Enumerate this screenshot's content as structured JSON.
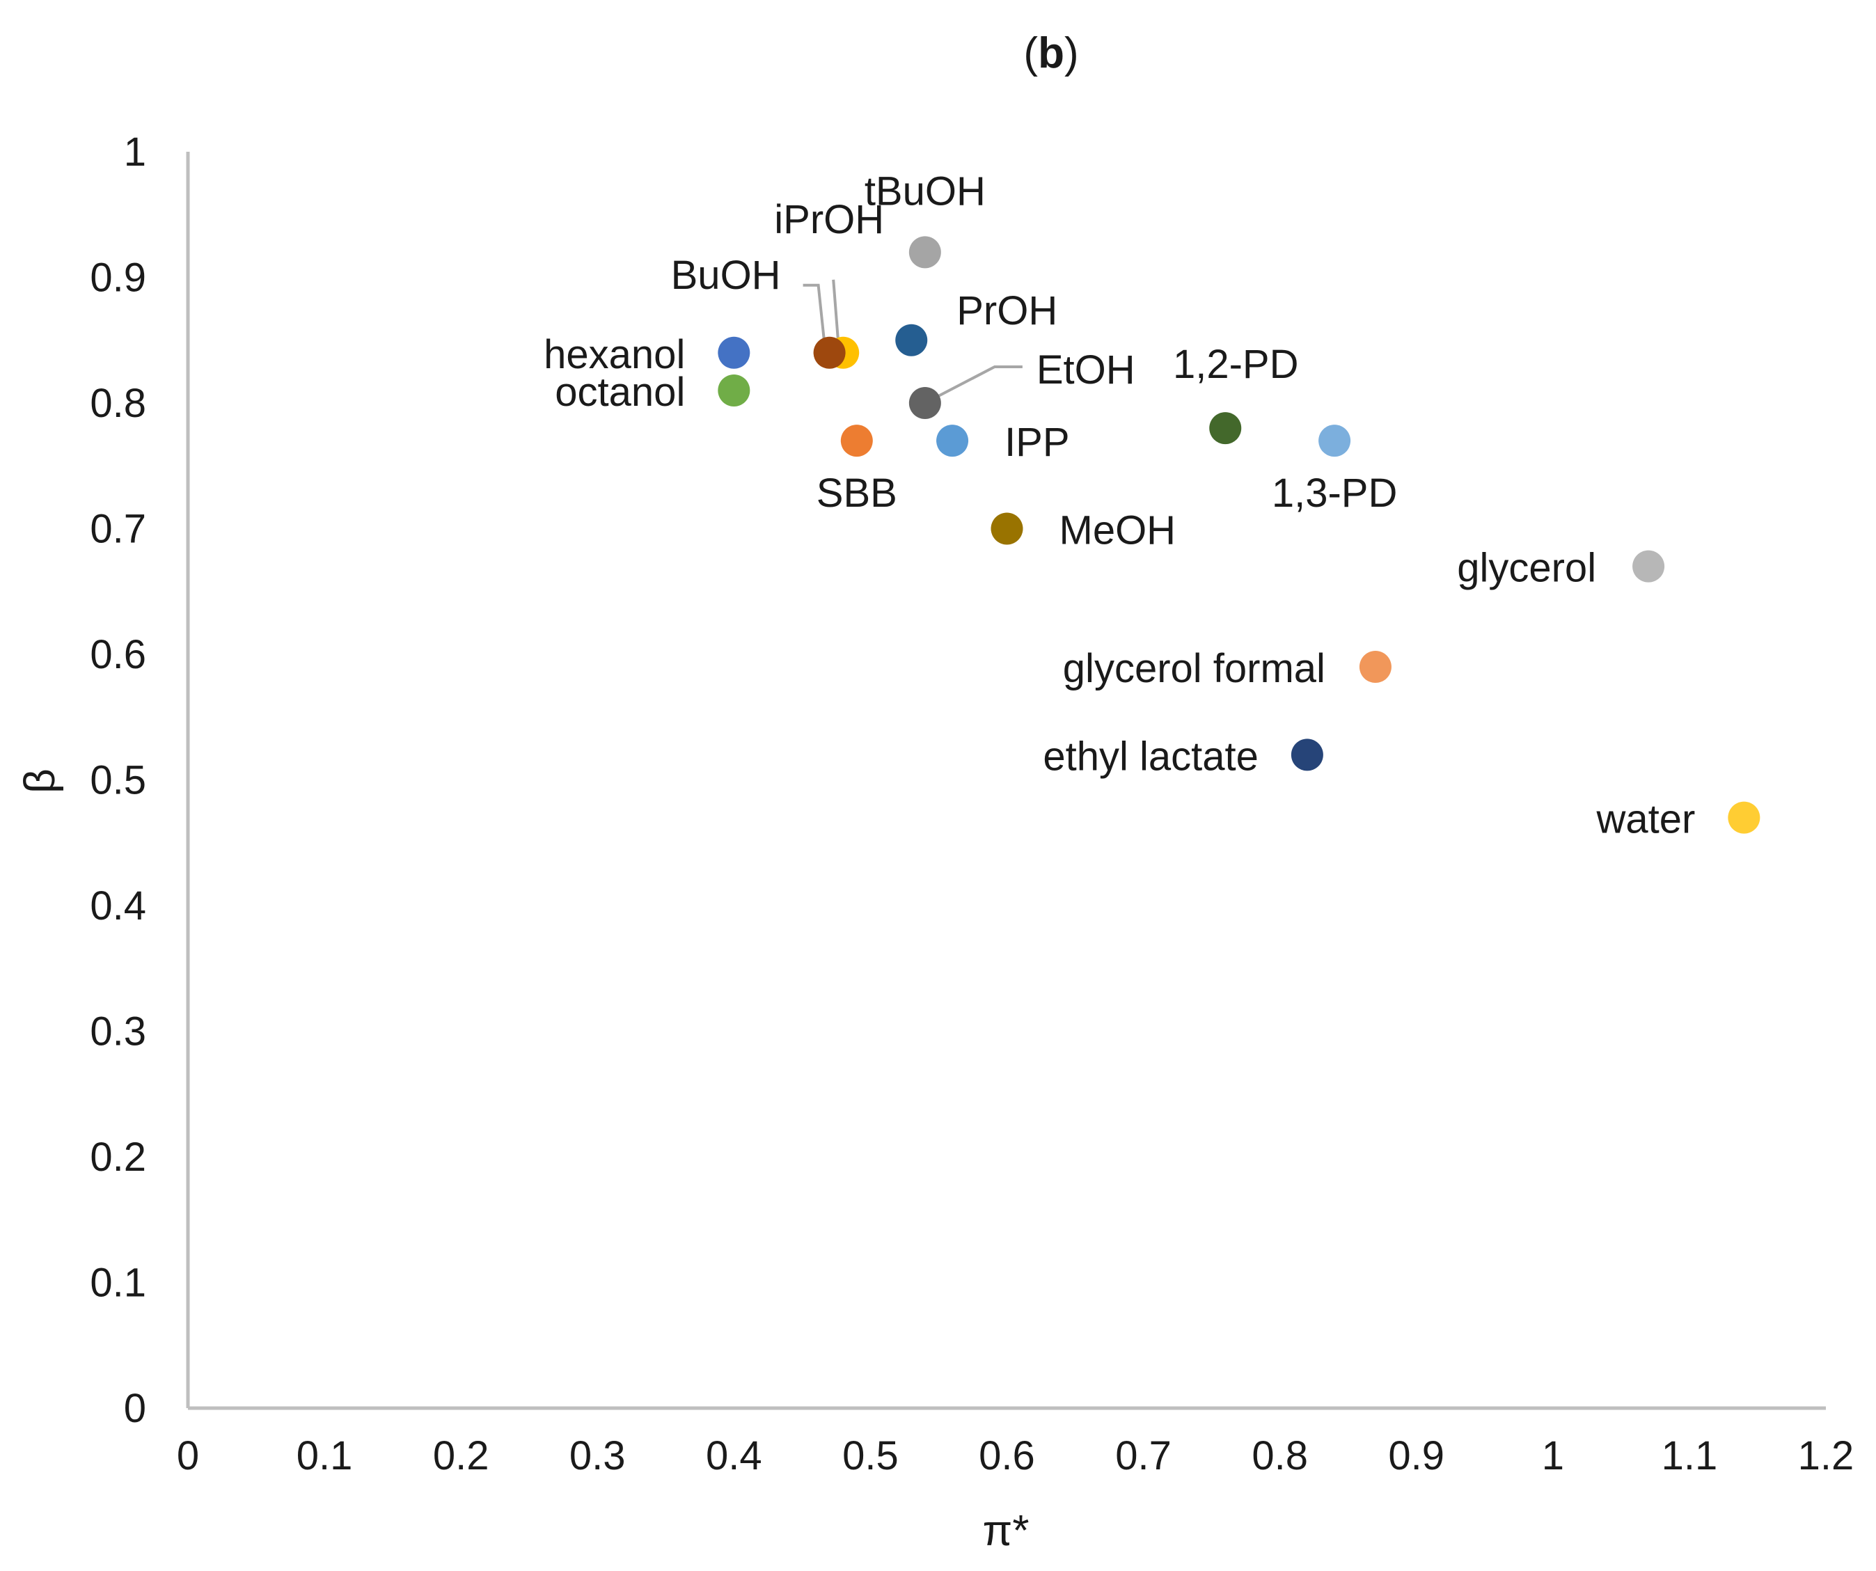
{
  "chart_data": {
    "type": "scatter",
    "title_prefix": "(",
    "title_bold": "b",
    "title_suffix": ")",
    "xlabel": "π*",
    "ylabel": "β",
    "xlim": [
      0,
      1.2
    ],
    "ylim": [
      0,
      1
    ],
    "xticks": [
      "0",
      "0.1",
      "0.2",
      "0.3",
      "0.4",
      "0.5",
      "0.6",
      "0.7",
      "0.8",
      "0.9",
      "1",
      "1.1",
      "1.2"
    ],
    "yticks": [
      "0",
      "0.1",
      "0.2",
      "0.3",
      "0.4",
      "0.5",
      "0.6",
      "0.7",
      "0.8",
      "0.9",
      "1"
    ],
    "grid": false,
    "points": [
      {
        "name": "tBuOH",
        "x": 0.54,
        "y": 0.92,
        "color": "#a5a5a5"
      },
      {
        "name": "hexanol",
        "x": 0.4,
        "y": 0.84,
        "color": "#4472c4"
      },
      {
        "name": "iPrOH",
        "x": 0.48,
        "y": 0.84,
        "color": "#ffc000"
      },
      {
        "name": "BuOH",
        "x": 0.47,
        "y": 0.84,
        "color": "#9e480e"
      },
      {
        "name": "PrOH",
        "x": 0.53,
        "y": 0.85,
        "color": "#255e91"
      },
      {
        "name": "octanol",
        "x": 0.4,
        "y": 0.81,
        "color": "#70ad47"
      },
      {
        "name": "EtOH",
        "x": 0.54,
        "y": 0.8,
        "color": "#636363"
      },
      {
        "name": "SBB",
        "x": 0.49,
        "y": 0.77,
        "color": "#ed7d31"
      },
      {
        "name": "IPP",
        "x": 0.56,
        "y": 0.77,
        "color": "#5b9bd5"
      },
      {
        "name": "1,2-PD",
        "x": 0.76,
        "y": 0.78,
        "color": "#43682b"
      },
      {
        "name": "1,3-PD",
        "x": 0.84,
        "y": 0.77,
        "color": "#7cafdd"
      },
      {
        "name": "MeOH",
        "x": 0.6,
        "y": 0.7,
        "color": "#997300"
      },
      {
        "name": "glycerol",
        "x": 1.07,
        "y": 0.67,
        "color": "#b7b7b7"
      },
      {
        "name": "glycerol formal",
        "x": 0.87,
        "y": 0.59,
        "color": "#f1975a"
      },
      {
        "name": "ethyl lactate",
        "x": 0.82,
        "y": 0.52,
        "color": "#264478"
      },
      {
        "name": "water",
        "x": 1.14,
        "y": 0.47,
        "color": "#ffcd33"
      }
    ]
  }
}
